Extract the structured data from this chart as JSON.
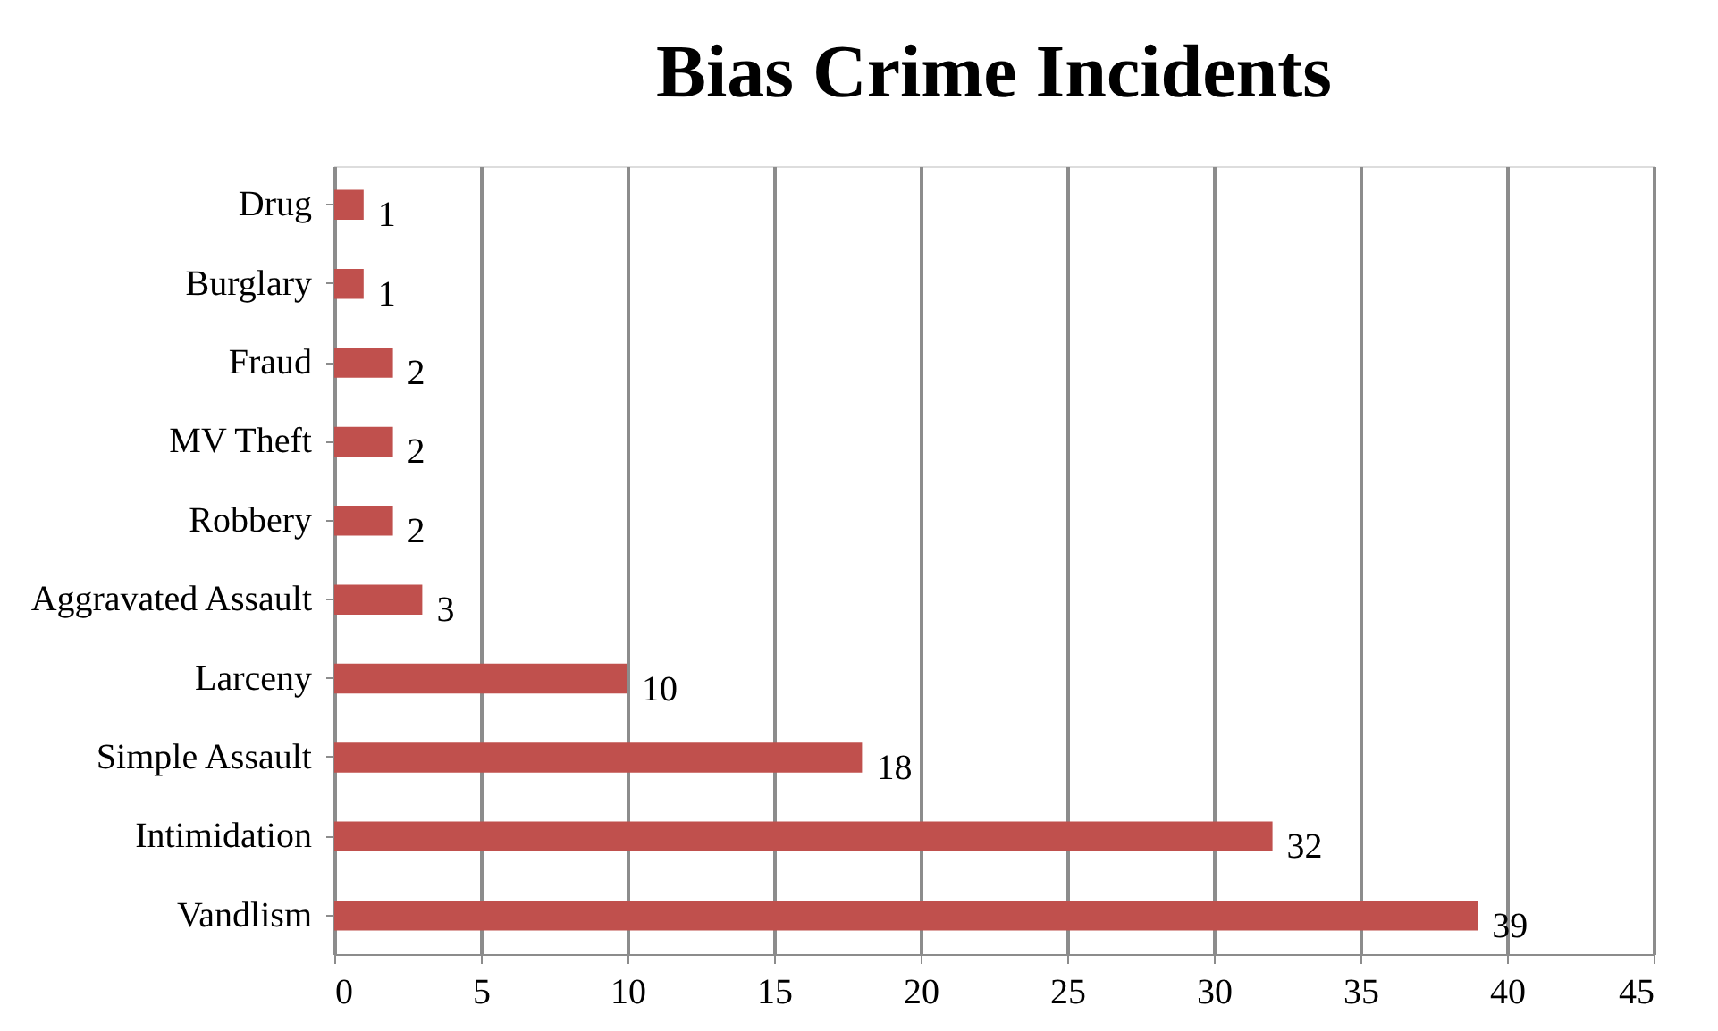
{
  "chart_data": {
    "type": "bar",
    "title": "Bias Crime Incidents",
    "orientation": "horizontal",
    "categories": [
      "Drug",
      "Burglary",
      "Fraud",
      "MV Theft",
      "Robbery",
      "Aggravated Assault",
      "Larceny",
      "Simple Assault",
      "Intimidation",
      "Vandlism"
    ],
    "values": [
      1,
      1,
      2,
      2,
      2,
      3,
      10,
      18,
      32,
      39
    ],
    "color": "#c0504d",
    "xlim": [
      0,
      45
    ],
    "xticks": [
      0,
      5,
      10,
      15,
      20,
      25,
      30,
      35,
      40,
      45
    ],
    "grid": "x",
    "data_labels": true
  }
}
